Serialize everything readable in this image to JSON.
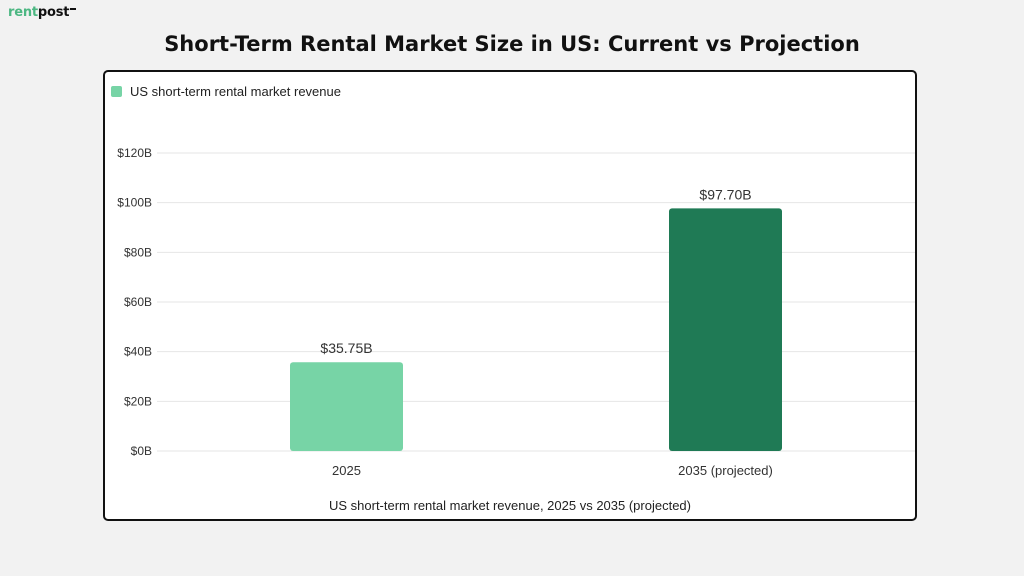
{
  "logo": {
    "part1": "rent",
    "part2": "post"
  },
  "chart_data": {
    "type": "bar",
    "title": "Short-Term Rental Market Size in US: Current vs Projection",
    "categories": [
      "2025",
      "2035 (projected)"
    ],
    "series": [
      {
        "name": "US short-term rental market revenue",
        "values": [
          35.75,
          97.7
        ],
        "value_labels": [
          "$35.75B",
          "$97.70B"
        ],
        "colors": [
          "#77d4a6",
          "#1f7a55"
        ]
      }
    ],
    "legend": {
      "position": "top-left",
      "swatch_color": "#77d4a6"
    },
    "ylim": [
      0,
      120
    ],
    "yticks": [
      0,
      20,
      40,
      60,
      80,
      100,
      120
    ],
    "ytick_labels": [
      "$0B",
      "$20B",
      "$40B",
      "$60B",
      "$80B",
      "$100B",
      "$120B"
    ],
    "grid": true,
    "xlabel": "US short-term rental market revenue, 2025 vs 2035 (projected)",
    "ylabel": ""
  }
}
